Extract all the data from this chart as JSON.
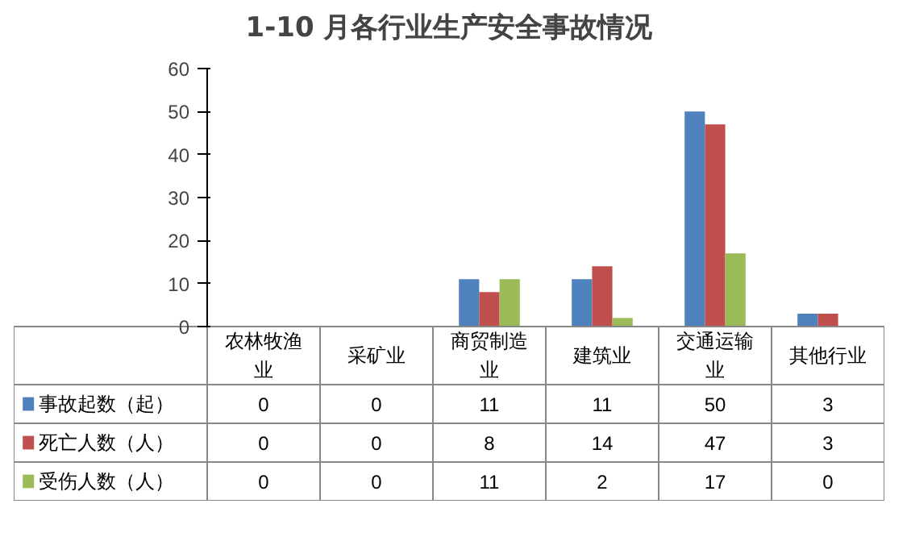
{
  "chart_data": {
    "type": "bar",
    "title": "1-10 月各行业生产安全事故情况",
    "categories": [
      "农林牧渔业",
      "采矿业",
      "商贸制造业",
      "建筑业",
      "交通运输业",
      "其他行业"
    ],
    "series": [
      {
        "name": "事故起数（起）",
        "color": "#4f81bd",
        "values": [
          0,
          0,
          11,
          11,
          50,
          3
        ]
      },
      {
        "name": "死亡人数（人）",
        "color": "#c0504d",
        "values": [
          0,
          0,
          8,
          14,
          47,
          3
        ]
      },
      {
        "name": "受伤人数（人）",
        "color": "#9bbb59",
        "values": [
          0,
          0,
          11,
          2,
          17,
          0
        ]
      }
    ],
    "ylim": [
      0,
      60
    ],
    "yticks": [
      0,
      10,
      20,
      30,
      40,
      50,
      60
    ],
    "data_labels": true,
    "legend": "bottom left"
  }
}
